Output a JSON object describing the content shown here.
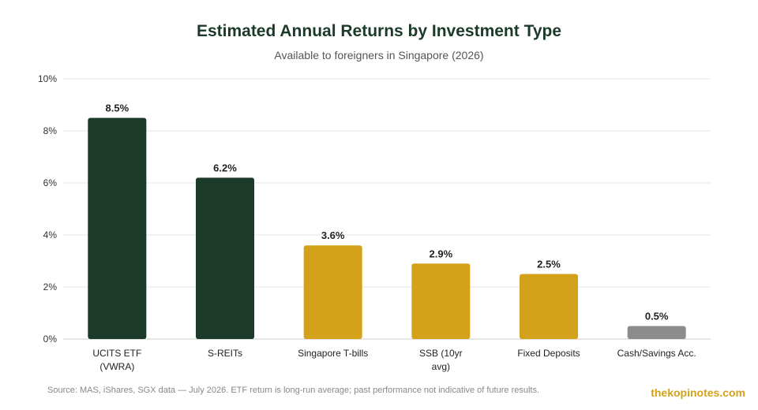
{
  "chart_data": {
    "type": "bar",
    "title": "Estimated Annual Returns by Investment Type",
    "subtitle": "Available to foreigners in Singapore (2026)",
    "categories": [
      [
        "UCITS ETF",
        "(VWRA)"
      ],
      [
        "S-REITs"
      ],
      [
        "Singapore T-bills"
      ],
      [
        "SSB (10yr",
        "avg)"
      ],
      [
        "Fixed Deposits"
      ],
      [
        "Cash/Savings Acc."
      ]
    ],
    "values": [
      8.5,
      6.2,
      3.6,
      2.9,
      2.5,
      0.5
    ],
    "value_labels": [
      "8.5%",
      "6.2%",
      "3.6%",
      "2.9%",
      "2.5%",
      "0.5%"
    ],
    "colors": [
      "#1b3a2a",
      "#1b3a2a",
      "#d4a21a",
      "#d4a21a",
      "#d4a21a",
      "#8c8c8c"
    ],
    "ylim": [
      0,
      10
    ],
    "yticks": [
      0,
      2,
      4,
      6,
      8,
      10
    ],
    "ytick_labels": [
      "0%",
      "2%",
      "4%",
      "6%",
      "8%",
      "10%"
    ],
    "xlabel": "",
    "ylabel": "",
    "grid": true,
    "legend": "none"
  },
  "footer": {
    "source": "Source: MAS, iShares, SGX data — July 2026. ETF return is long-run average; past performance not indicative of future results.",
    "brand": "thekopinotes.com"
  }
}
